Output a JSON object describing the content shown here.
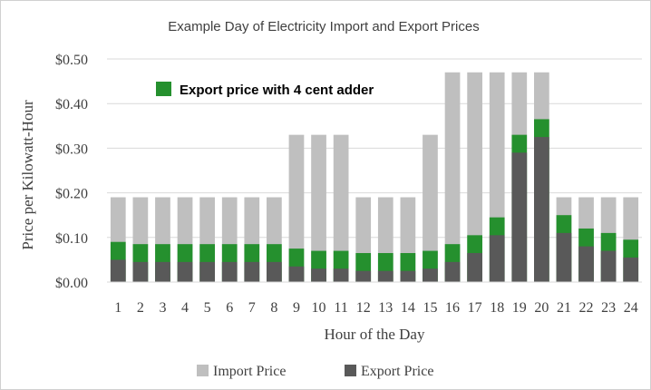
{
  "chart_data": {
    "type": "bar",
    "title": "Example Day of Electricity  Import and Export Prices",
    "xlabel": "Hour of the Day",
    "ylabel": "Price per Kilowatt-Hour",
    "ylim": [
      0,
      0.5
    ],
    "yticks": [
      "$0.00",
      "$0.10",
      "$0.20",
      "$0.30",
      "$0.40",
      "$0.50"
    ],
    "grid": true,
    "categories": [
      "1",
      "2",
      "3",
      "4",
      "5",
      "6",
      "7",
      "8",
      "9",
      "10",
      "11",
      "12",
      "13",
      "14",
      "15",
      "16",
      "17",
      "18",
      "19",
      "20",
      "21",
      "22",
      "23",
      "24"
    ],
    "series": [
      {
        "name": "Import Price",
        "color": "#bfbfbf",
        "values": [
          0.19,
          0.19,
          0.19,
          0.19,
          0.19,
          0.19,
          0.19,
          0.19,
          0.33,
          0.33,
          0.33,
          0.19,
          0.19,
          0.19,
          0.33,
          0.47,
          0.47,
          0.47,
          0.47,
          0.47,
          0.19,
          0.19,
          0.19,
          0.19
        ]
      },
      {
        "name": "Export Price",
        "color": "#595959",
        "values": [
          0.05,
          0.045,
          0.045,
          0.045,
          0.045,
          0.045,
          0.045,
          0.045,
          0.035,
          0.03,
          0.03,
          0.025,
          0.025,
          0.025,
          0.03,
          0.045,
          0.065,
          0.105,
          0.29,
          0.325,
          0.11,
          0.08,
          0.07,
          0.055
        ]
      }
    ],
    "adder": {
      "label": "Export price with 4 cent adder",
      "color": "#25902e",
      "amount": 0.04
    },
    "legend": {
      "position": "bottom",
      "items": [
        "Import Price",
        "Export Price"
      ]
    }
  }
}
